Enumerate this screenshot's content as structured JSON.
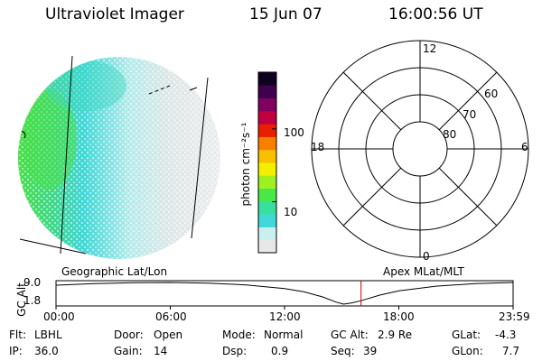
{
  "header": {
    "instrument": "Ultraviolet Imager",
    "date": "15 Jun 07",
    "time": "16:00:56 UT"
  },
  "colorbar": {
    "label": "photon cm⁻²s⁻¹",
    "ticks": [
      {
        "value": 100,
        "label": "100"
      },
      {
        "value": 10,
        "label": "10"
      }
    ],
    "range": [
      2,
      600
    ],
    "colors": [
      "#e8e8e8",
      "#c8f0ee",
      "#40d8d8",
      "#38e0a0",
      "#48e848",
      "#a0f020",
      "#f0f000",
      "#f8c000",
      "#f88000",
      "#e82000",
      "#c00040",
      "#800060",
      "#400050",
      "#100020"
    ]
  },
  "image_panel": {
    "label": "Geographic Lat/Lon"
  },
  "polar_plot": {
    "label": "Apex MLat/MLT",
    "hours": [
      {
        "h": 12,
        "label": "12"
      },
      {
        "h": 18,
        "label": "18"
      },
      {
        "h": 6,
        "label": "6"
      },
      {
        "h": 0,
        "label": "0"
      }
    ],
    "lat_rings": [
      {
        "lat": 60,
        "label": "60"
      },
      {
        "lat": 70,
        "label": "70"
      },
      {
        "lat": 80,
        "label": "80"
      }
    ],
    "outer_lat": 50
  },
  "altitude_strip": {
    "ylabel": "GC Alt",
    "y_ticks": [
      "9.0",
      "1.8"
    ],
    "y_range": [
      1.8,
      9.0
    ],
    "x_ticks": [
      "00:00",
      "06:00",
      "12:00",
      "18:00",
      "23:59"
    ],
    "x_range_hours": [
      0,
      24
    ],
    "current_hour": 16.0156,
    "marker_color": "#d00000",
    "orbit": [
      {
        "t": 0,
        "alt": 8.1
      },
      {
        "t": 2,
        "alt": 8.6
      },
      {
        "t": 4,
        "alt": 8.9
      },
      {
        "t": 6,
        "alt": 9.0
      },
      {
        "t": 8,
        "alt": 8.8
      },
      {
        "t": 10,
        "alt": 8.2
      },
      {
        "t": 12,
        "alt": 7.0
      },
      {
        "t": 13,
        "alt": 5.9
      },
      {
        "t": 14,
        "alt": 4.2
      },
      {
        "t": 14.7,
        "alt": 2.5
      },
      {
        "t": 15.1,
        "alt": 1.8
      },
      {
        "t": 15.5,
        "alt": 2.2
      },
      {
        "t": 16,
        "alt": 2.9
      },
      {
        "t": 17,
        "alt": 4.8
      },
      {
        "t": 18,
        "alt": 6.2
      },
      {
        "t": 20,
        "alt": 7.8
      },
      {
        "t": 22,
        "alt": 8.6
      },
      {
        "t": 24,
        "alt": 9.0
      }
    ]
  },
  "info": {
    "flt_label": "Flt:",
    "flt_value": "LBHL",
    "ip_label": "IP:",
    "ip_value": "36.0",
    "door_label": "Door:",
    "door_value": "Open",
    "gain_label": "Gain:",
    "gain_value": "14",
    "mode_label": "Mode:",
    "mode_value": "Normal",
    "dsp_label": "Dsp:",
    "dsp_value": "0.9",
    "gcalt_label": "GC Alt:",
    "gcalt_value": "2.9 Re",
    "seq_label": "Seq:",
    "seq_value": "39",
    "glat_label": "GLat:",
    "glat_value": "-4.3",
    "glon_label": "GLon:",
    "glon_value": "7.7"
  }
}
